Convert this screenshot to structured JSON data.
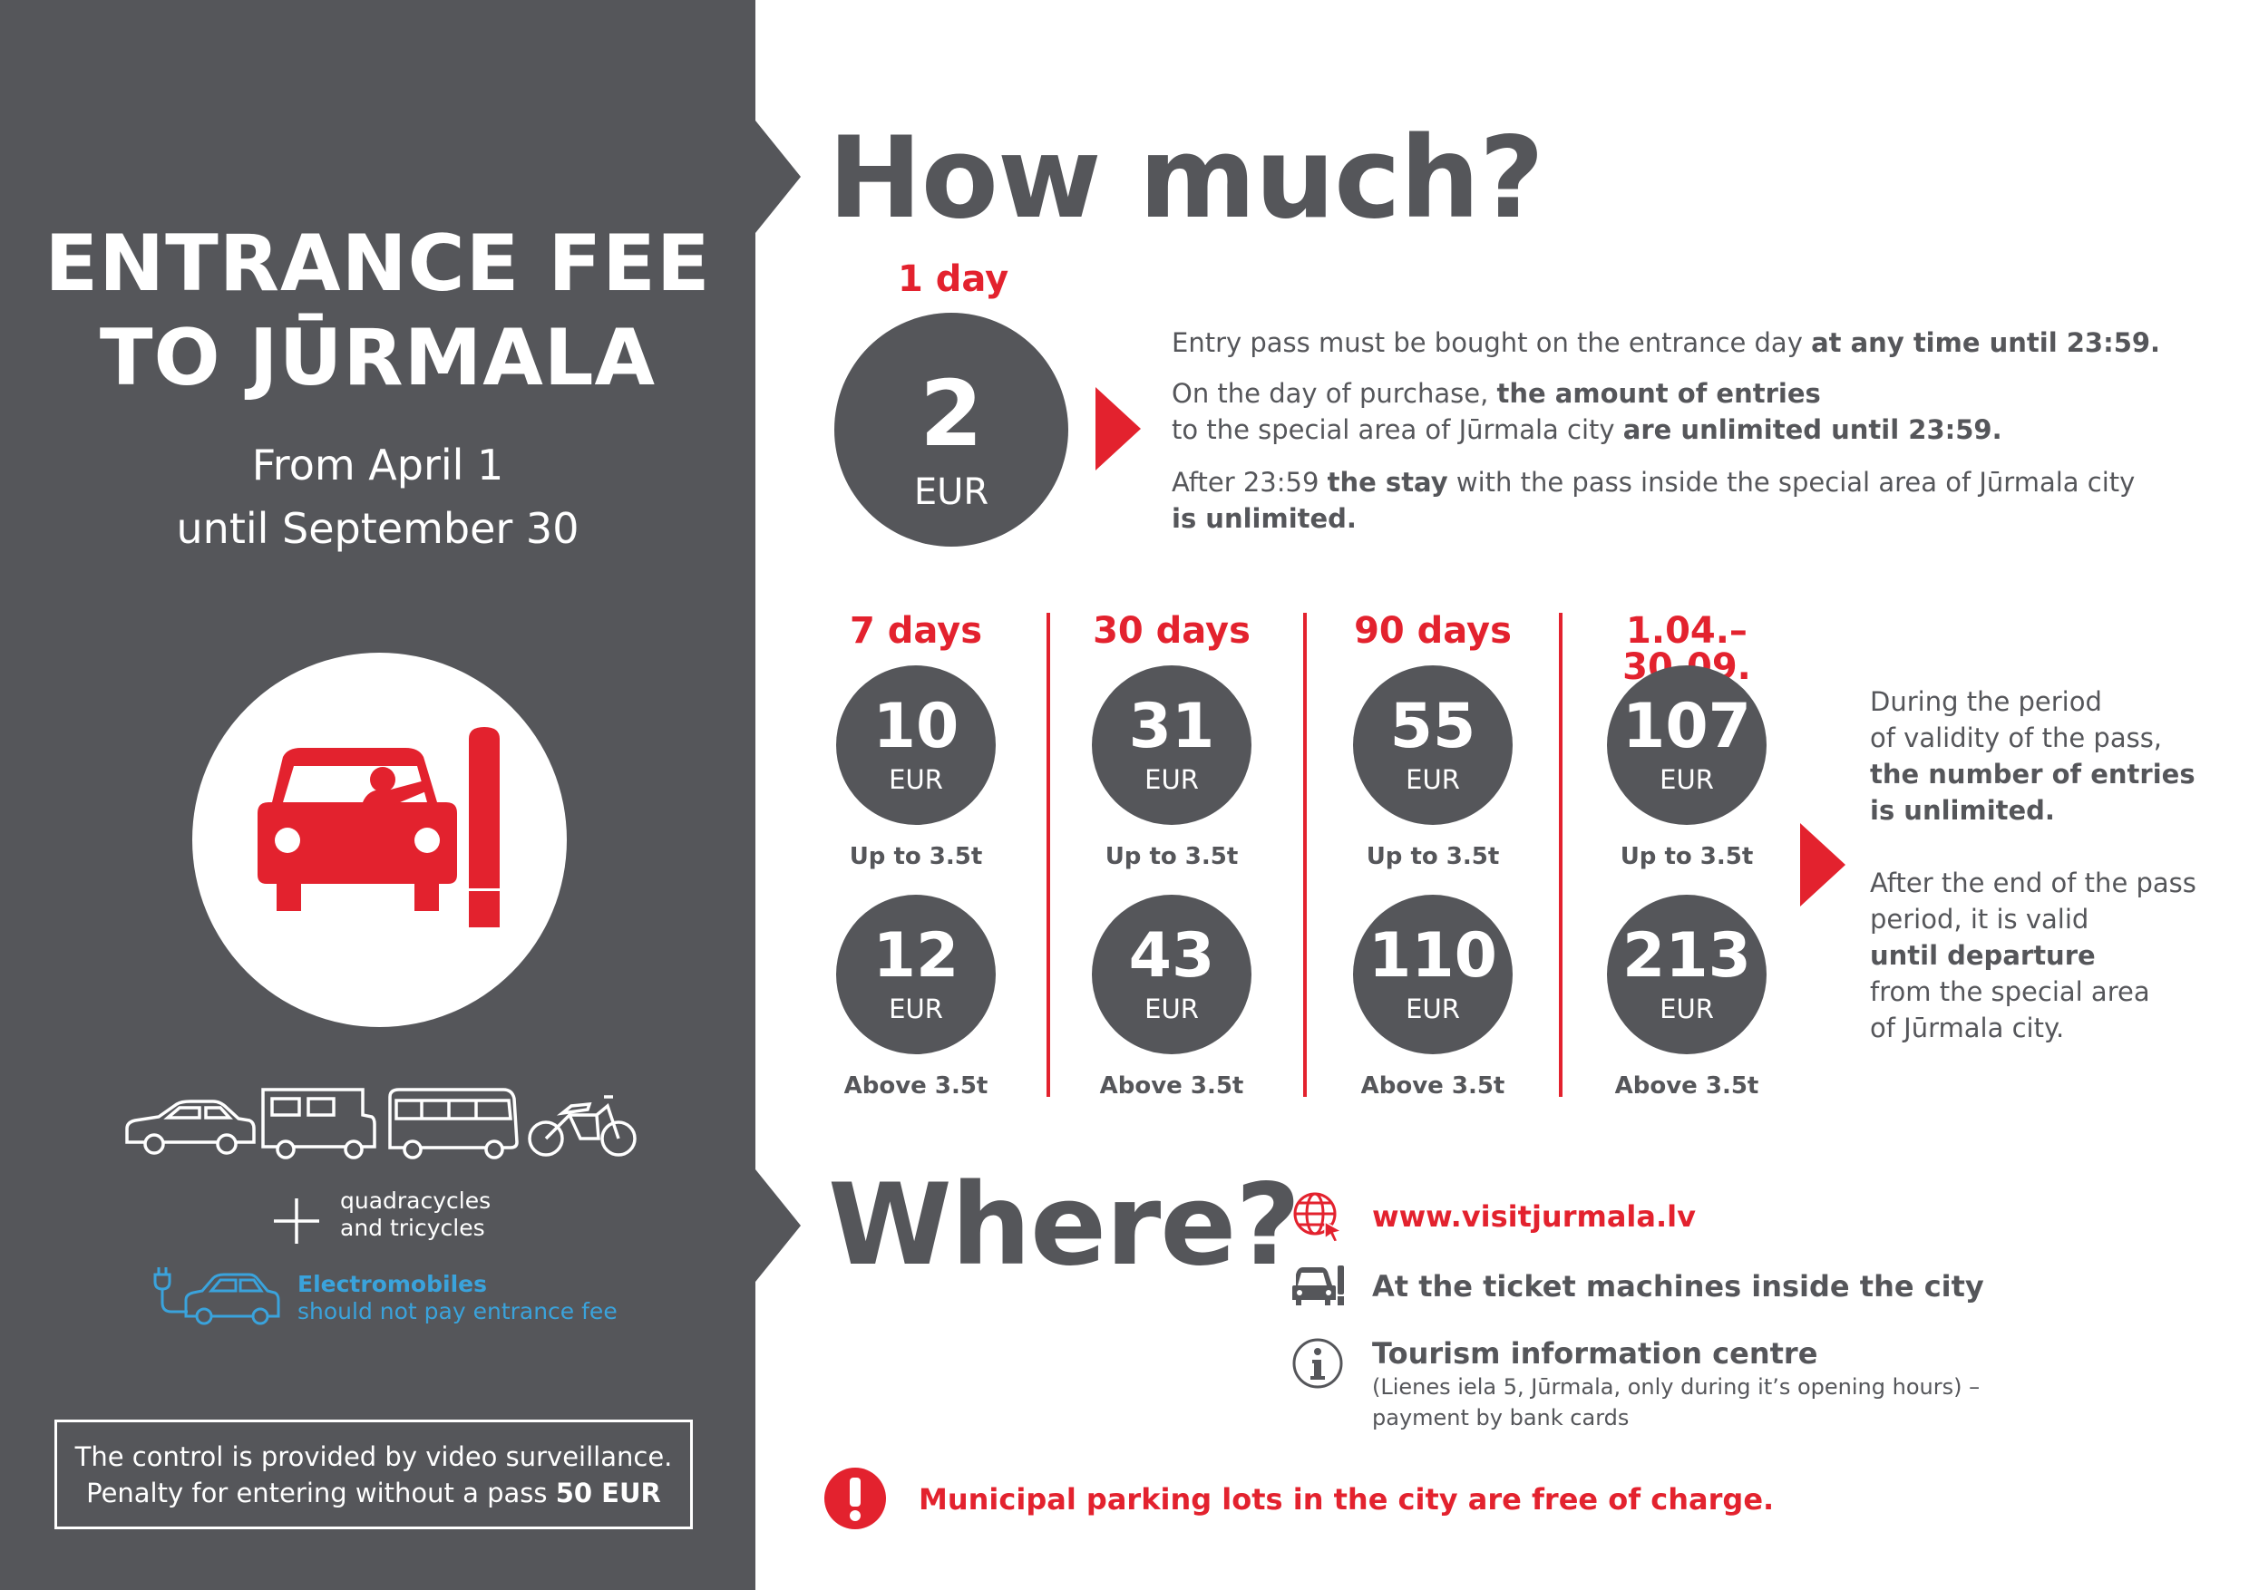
{
  "left_panel": {
    "title_line1": "ENTRANCE FEE",
    "title_line2": "TO JŪRMALA",
    "period_line1": "From April 1",
    "period_line2": "until September 30",
    "icon": "car-at-gate-icon",
    "vehicle_icons": [
      "car-icon",
      "camper-icon",
      "bus-icon",
      "motorcycle-icon"
    ],
    "extra_line1": "quadracycles",
    "extra_line2": "and tricycles",
    "ev_title": "Electromobiles",
    "ev_text": "should not pay entrance fee",
    "control_line1": "The control is provided by video surveillance.",
    "control_line2_prefix": "Penalty for entering without a pass ",
    "control_line2_amount": "50 EUR"
  },
  "colors": {
    "panel_gray": "#55565a",
    "accent_red": "#e3222e",
    "ev_blue": "#3aa3dc"
  },
  "how_much": {
    "heading": "How much?",
    "one_day": {
      "label": "1 day",
      "price": "2",
      "currency": "EUR",
      "line1_normal": "Entry pass must be bought on the entrance day ",
      "line1_bold": "at any time until 23:59.",
      "line2_normal": "On the day of purchase, ",
      "line2_bold": "the amount of entries",
      "line3_normal": "to the special area of Jūrmala city ",
      "line3_bold": "are unlimited until 23:59.",
      "line4_normal_a": "After 23:59 ",
      "line4_bold": "the stay",
      "line4_normal_b": " with the pass inside the special area of Jūrmala city",
      "line5_bold": "is unlimited."
    },
    "periods": [
      {
        "label": "7 days",
        "up_price": "10",
        "above_price": "12",
        "currency": "EUR",
        "up_label": "Up to 3.5t",
        "above_label": "Above 3.5t"
      },
      {
        "label": "30 days",
        "up_price": "31",
        "above_price": "43",
        "currency": "EUR",
        "up_label": "Up to 3.5t",
        "above_label": "Above 3.5t"
      },
      {
        "label": "90 days",
        "up_price": "55",
        "above_price": "110",
        "currency": "EUR",
        "up_label": "Up to 3.5t",
        "above_label": "Above 3.5t"
      },
      {
        "label": "1.04.–30.09.",
        "up_price": "107",
        "above_price": "213",
        "currency": "EUR",
        "up_label": "Up to 3.5t",
        "above_label": "Above 3.5t"
      }
    ],
    "period_note": {
      "l1": "During the period",
      "l2": "of validity of the pass,",
      "l3": "the number of entries",
      "l4": "is unlimited.",
      "l5": "After the end of the pass",
      "l6": "period, it is valid",
      "l7": "until departure",
      "l8": "from the special area",
      "l9": "of Jūrmala city."
    }
  },
  "where": {
    "heading": "Where?",
    "website": "www.visitjurmala.lv",
    "machines": "At the ticket machines inside the city",
    "tic_title": "Tourism information centre",
    "tic_line1": "(Lienes iela 5, Jūrmala, only during it’s opening hours) –",
    "tic_line2": "payment by bank cards",
    "parking_note": "Municipal parking lots in the city are free of charge."
  }
}
